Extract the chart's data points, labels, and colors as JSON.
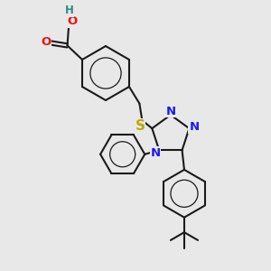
{
  "bg": "#e8e8e8",
  "bc": "#1a1a1a",
  "nc": "#1a1aee",
  "oc": "#ee1111",
  "sc": "#bbaa00",
  "hc": "#338888",
  "lw": 1.5,
  "fs": 9.5,
  "hfs": 8.5,
  "xlim": [
    0,
    10
  ],
  "ylim": [
    0,
    10
  ]
}
